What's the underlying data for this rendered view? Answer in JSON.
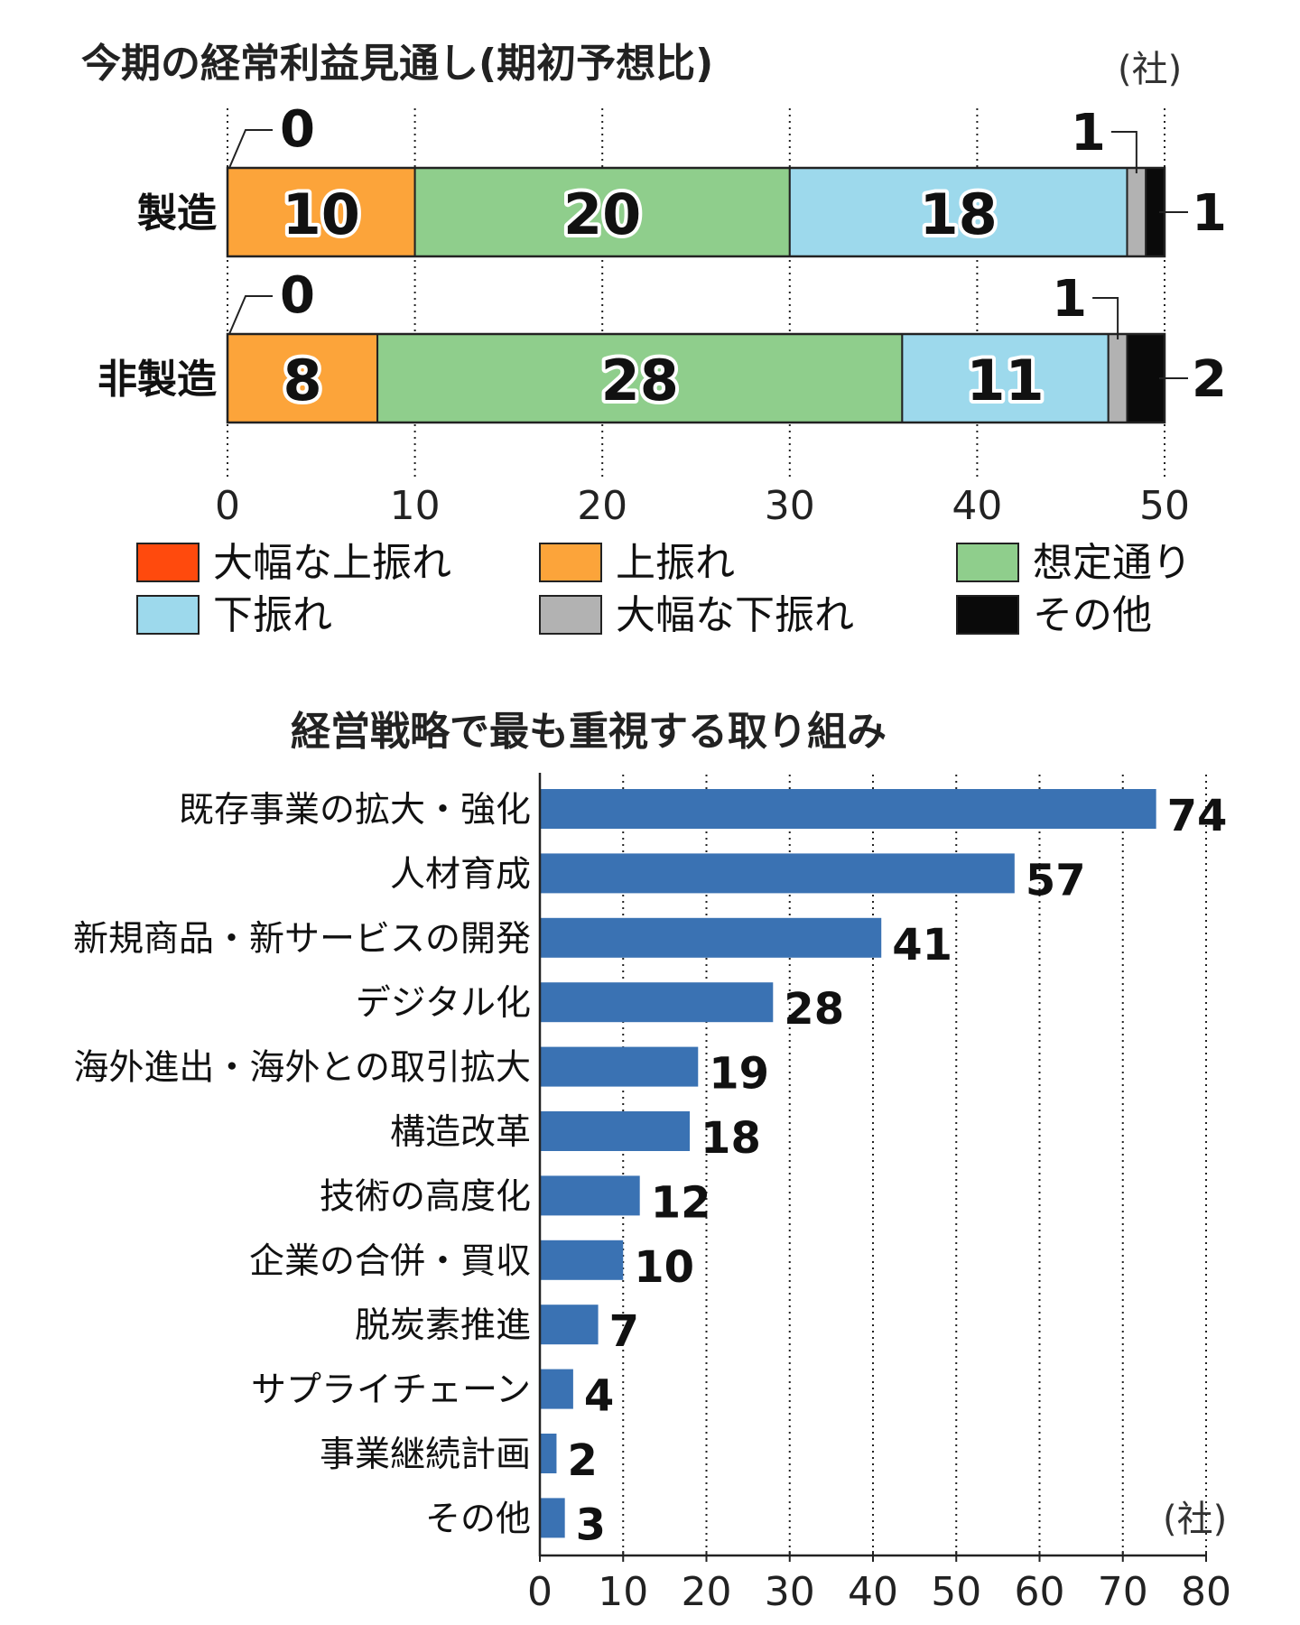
{
  "chart_data": [
    {
      "type": "stacked-bar",
      "title": "今期の経常利益見通し(期初予想比)",
      "unit": "(社)",
      "categories": [
        "製造",
        "非製造"
      ],
      "xlim": [
        0,
        50
      ],
      "xticks": [
        "0",
        "10",
        "20",
        "30",
        "40",
        "50"
      ],
      "grid": true,
      "series": [
        {
          "name": "大幅な上振れ",
          "color": "#ff4a0d",
          "values": [
            0,
            0
          ]
        },
        {
          "name": "上振れ",
          "color": "#fca43a",
          "values": [
            10,
            8
          ]
        },
        {
          "name": "想定通り",
          "color": "#8fce8c",
          "values": [
            20,
            28
          ]
        },
        {
          "name": "下振れ",
          "color": "#9dd9ec",
          "values": [
            18,
            11
          ]
        },
        {
          "name": "大幅な下振れ",
          "color": "#b2b2b2",
          "values": [
            1,
            1
          ]
        },
        {
          "name": "その他",
          "color": "#0a0a0a",
          "values": [
            1,
            2
          ]
        }
      ],
      "legend_position": "bottom"
    },
    {
      "type": "bar",
      "orientation": "horizontal",
      "title": "経営戦略で最も重視する取り組み",
      "unit": "(社)",
      "categories": [
        "既存事業の拡大・強化",
        "人材育成",
        "新規商品・新サービスの開発",
        "デジタル化",
        "海外進出・海外との取引拡大",
        "構造改革",
        "技術の高度化",
        "企業の合併・買収",
        "脱炭素推進",
        "サプライチェーン",
        "事業継続計画",
        "その他"
      ],
      "values": [
        74,
        57,
        41,
        28,
        19,
        18,
        12,
        10,
        7,
        4,
        2,
        3
      ],
      "xlim": [
        0,
        80
      ],
      "xticks": [
        "0",
        "10",
        "20",
        "30",
        "40",
        "50",
        "60",
        "70",
        "80"
      ],
      "grid": true,
      "color": "#3a72b3"
    }
  ]
}
